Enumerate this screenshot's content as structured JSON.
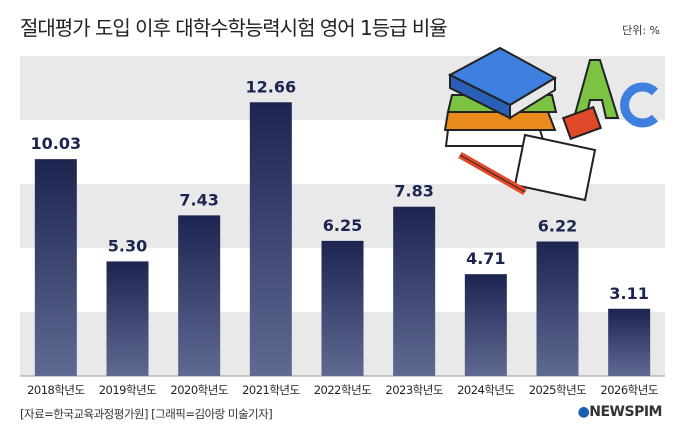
{
  "title": "절대평가 도입 이후 대학수학능력시험 영어 1등급 비율",
  "unit_label": "단위: %",
  "source": "[자료=한국교육과정평가원] [그래픽=김아랑 미술기자]",
  "logo": "NEWSPIM",
  "colors": {
    "bar_top": "#1c2550",
    "bar_bottom": "#5f6a93",
    "band": "#e9e9e9",
    "label": "#1c2550"
  },
  "chart_data": {
    "type": "bar",
    "title": "절대평가 도입 이후 대학수학능력시험 영어 1등급 비율",
    "ylabel": "단위: %",
    "categories": [
      "2018학년도",
      "2019학년도",
      "2020학년도",
      "2021학년도",
      "2022학년도",
      "2023학년도",
      "2024학년도",
      "2025학년도",
      "2026학년도"
    ],
    "values": [
      10.03,
      5.3,
      7.43,
      12.66,
      6.25,
      7.83,
      4.71,
      6.22,
      3.11
    ],
    "value_labels": [
      "10.03",
      "5.30",
      "7.43",
      "12.66",
      "6.25",
      "7.83",
      "4.71",
      "6.22",
      "3.11"
    ],
    "ylim": [
      0,
      14.8
    ],
    "grid": "alternating bands"
  }
}
